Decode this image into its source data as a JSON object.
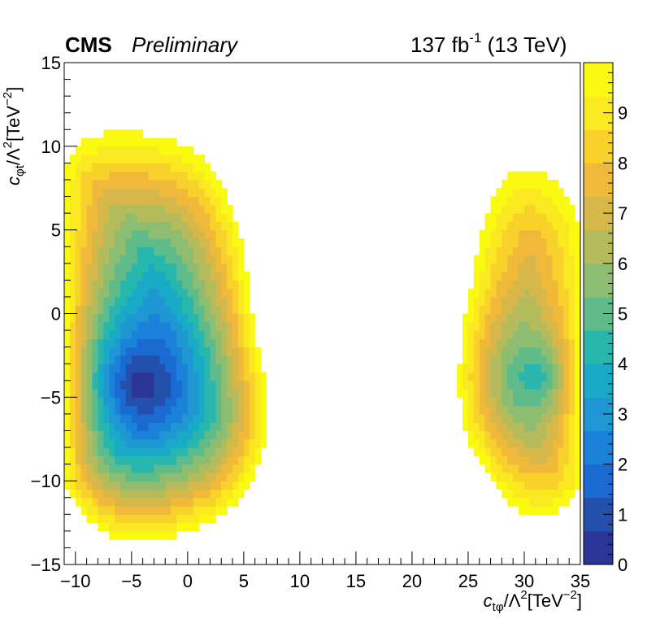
{
  "header": {
    "experiment": "CMS",
    "status": "Preliminary",
    "lumi": "137 fb",
    "lumi_exp": "-1",
    "energy": " (13 TeV)"
  },
  "axes": {
    "x_title_main": "c",
    "x_title_sub": "tφ",
    "x_title_rest": "/Λ",
    "x_title_sup": "2",
    "x_title_unit": "[TeV",
    "x_title_unit_sup": "−2",
    "x_title_close": "]",
    "y_title_main": "c",
    "y_title_sub": "φt",
    "y_title_rest": "/Λ",
    "y_title_sup": "2",
    "y_title_unit": "[TeV",
    "y_title_unit_sup": "−2",
    "y_title_close": "]"
  },
  "chart_data": {
    "type": "heatmap",
    "x_ticks": [
      "−10",
      "−5",
      "0",
      "5",
      "10",
      "15",
      "20",
      "25",
      "30",
      "35"
    ],
    "x_tick_values": [
      -10,
      -5,
      0,
      5,
      10,
      15,
      20,
      25,
      30,
      35
    ],
    "y_ticks": [
      "−15",
      "−10",
      "−5",
      "0",
      "5",
      "10",
      "15"
    ],
    "y_tick_values": [
      -15,
      -10,
      -5,
      0,
      5,
      10,
      15
    ],
    "xlim": [
      -11,
      35
    ],
    "ylim": [
      -15,
      15
    ],
    "zlim": [
      0,
      10
    ],
    "z_ticks": [
      "0",
      "1",
      "2",
      "3",
      "4",
      "5",
      "6",
      "7",
      "8",
      "9"
    ],
    "z_tick_values": [
      0,
      1,
      2,
      3,
      4,
      5,
      6,
      7,
      8,
      9
    ],
    "colormap": [
      "#2a3595",
      "#2350ad",
      "#1a6ad2",
      "#1b82d9",
      "#1e97d2",
      "#18aac6",
      "#28b7ac",
      "#5fbc8a",
      "#8cbd70",
      "#b4bb5c",
      "#d6b84a",
      "#f0b93a",
      "#f8d22a",
      "#fae820",
      "#fafa10"
    ],
    "contour_threshold": 10,
    "islands": [
      {
        "name": "left",
        "minimum": [
          -4.2,
          -4.2
        ],
        "min_value": 0,
        "boundary": [
          [
            -11,
            8.5
          ],
          [
            -10.5,
            9.5
          ],
          [
            -9,
            10.4
          ],
          [
            -7,
            10.8
          ],
          [
            -4.5,
            10.8
          ],
          [
            -2,
            10.5
          ],
          [
            0,
            10.0
          ],
          [
            2,
            8.8
          ],
          [
            3.5,
            7.2
          ],
          [
            4.6,
            5.0
          ],
          [
            5.2,
            2.5
          ],
          [
            5.8,
            0
          ],
          [
            6.4,
            -2.5
          ],
          [
            7.0,
            -4.5
          ],
          [
            7.2,
            -6.5
          ],
          [
            6.6,
            -8.5
          ],
          [
            5.6,
            -10.0
          ],
          [
            4.4,
            -11.2
          ],
          [
            2.8,
            -12.2
          ],
          [
            0.5,
            -12.9
          ],
          [
            -2,
            -13.5
          ],
          [
            -4.5,
            -13.7
          ],
          [
            -6.5,
            -13.4
          ],
          [
            -8.5,
            -12.6
          ],
          [
            -10,
            -11.5
          ],
          [
            -11,
            -10.2
          ]
        ]
      },
      {
        "name": "right",
        "minimum": [
          31.0,
          -3.8
        ],
        "min_value": 4,
        "boundary": [
          [
            24.2,
            -3.5
          ],
          [
            24.5,
            -1.0
          ],
          [
            25.2,
            1.5
          ],
          [
            25.8,
            3.5
          ],
          [
            26.4,
            5.5
          ],
          [
            27.2,
            7.0
          ],
          [
            28.5,
            8.2
          ],
          [
            30.0,
            8.6
          ],
          [
            31.5,
            8.5
          ],
          [
            33.0,
            7.8
          ],
          [
            34.2,
            6.5
          ],
          [
            35,
            5.2
          ],
          [
            35,
            -10.5
          ],
          [
            34.0,
            -11.5
          ],
          [
            32.5,
            -12.0
          ],
          [
            30.5,
            -12.0
          ],
          [
            29.0,
            -11.5
          ],
          [
            27.5,
            -10.5
          ],
          [
            26.2,
            -9.0
          ],
          [
            25.0,
            -7.5
          ],
          [
            24.3,
            -6.0
          ]
        ]
      }
    ]
  }
}
